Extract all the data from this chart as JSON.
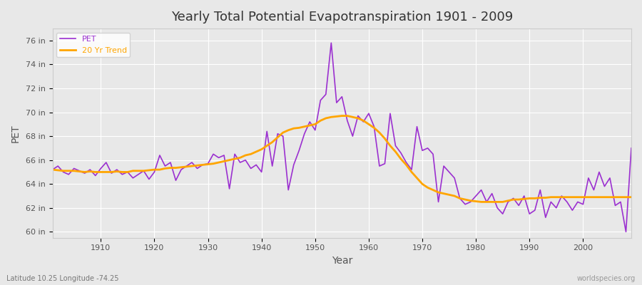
{
  "title": "Yearly Total Potential Evapotranspiration 1901 - 2009",
  "xlabel": "Year",
  "ylabel": "PET",
  "subtitle": "Latitude 10.25 Longitude -74.25",
  "watermark": "worldspecies.org",
  "background_color": "#e8e8e8",
  "plot_background": "#e8e8e8",
  "pet_color": "#9b30d0",
  "trend_color": "#ffa500",
  "ylim_min": 59.5,
  "ylim_max": 77,
  "yticks": [
    60,
    62,
    64,
    66,
    68,
    70,
    72,
    74,
    76
  ],
  "ytick_labels": [
    "60 in",
    "62 in",
    "64 in",
    "66 in",
    "68 in",
    "70 in",
    "72 in",
    "74 in",
    "76 in"
  ],
  "xlim_min": 1901,
  "xlim_max": 2009,
  "xticks": [
    1910,
    1920,
    1930,
    1940,
    1950,
    1960,
    1970,
    1980,
    1990,
    2000
  ],
  "years": [
    1901,
    1902,
    1903,
    1904,
    1905,
    1906,
    1907,
    1908,
    1909,
    1910,
    1911,
    1912,
    1913,
    1914,
    1915,
    1916,
    1917,
    1918,
    1919,
    1920,
    1921,
    1922,
    1923,
    1924,
    1925,
    1926,
    1927,
    1928,
    1929,
    1930,
    1931,
    1932,
    1933,
    1934,
    1935,
    1936,
    1937,
    1938,
    1939,
    1940,
    1941,
    1942,
    1943,
    1944,
    1945,
    1946,
    1947,
    1948,
    1949,
    1950,
    1951,
    1952,
    1953,
    1954,
    1955,
    1956,
    1957,
    1958,
    1959,
    1960,
    1961,
    1962,
    1963,
    1964,
    1965,
    1966,
    1967,
    1968,
    1969,
    1970,
    1971,
    1972,
    1973,
    1974,
    1975,
    1976,
    1977,
    1978,
    1979,
    1980,
    1981,
    1982,
    1983,
    1984,
    1985,
    1986,
    1987,
    1988,
    1989,
    1990,
    1991,
    1992,
    1993,
    1994,
    1995,
    1996,
    1997,
    1998,
    1999,
    2000,
    2001,
    2002,
    2003,
    2004,
    2005,
    2006,
    2007,
    2008,
    2009
  ],
  "pet_values": [
    65.2,
    65.5,
    65.0,
    64.8,
    65.3,
    65.1,
    64.9,
    65.2,
    64.7,
    65.3,
    65.8,
    64.9,
    65.2,
    64.8,
    65.0,
    64.5,
    64.8,
    65.1,
    64.4,
    65.0,
    66.4,
    65.5,
    65.8,
    64.3,
    65.2,
    65.5,
    65.8,
    65.3,
    65.6,
    65.7,
    66.5,
    66.2,
    66.4,
    63.6,
    66.5,
    65.8,
    66.0,
    65.3,
    65.6,
    65.0,
    68.4,
    65.5,
    68.2,
    68.0,
    63.5,
    65.6,
    66.8,
    68.2,
    69.2,
    68.5,
    71.0,
    71.5,
    75.8,
    70.8,
    71.3,
    69.3,
    68.0,
    69.7,
    69.2,
    69.9,
    68.8,
    65.5,
    65.7,
    69.9,
    67.2,
    66.6,
    65.8,
    65.2,
    68.8,
    66.8,
    67.0,
    66.5,
    62.5,
    65.5,
    65.0,
    64.5,
    62.8,
    62.3,
    62.5,
    63.0,
    63.5,
    62.5,
    63.2,
    62.0,
    61.5,
    62.5,
    62.8,
    62.2,
    63.0,
    61.5,
    61.8,
    63.5,
    61.2,
    62.5,
    62.0,
    63.0,
    62.5,
    61.8,
    62.5,
    62.3,
    64.5,
    63.5,
    65.0,
    63.8,
    64.5,
    62.2,
    62.5,
    60.0,
    67.0
  ],
  "trend_values": [
    65.2,
    65.15,
    65.1,
    65.1,
    65.1,
    65.05,
    65.0,
    65.05,
    65.0,
    65.0,
    65.0,
    65.0,
    65.05,
    65.0,
    65.0,
    65.1,
    65.1,
    65.1,
    65.15,
    65.2,
    65.2,
    65.3,
    65.35,
    65.35,
    65.4,
    65.45,
    65.5,
    65.55,
    65.6,
    65.65,
    65.7,
    65.8,
    65.9,
    66.0,
    66.1,
    66.2,
    66.4,
    66.5,
    66.7,
    66.9,
    67.2,
    67.5,
    67.9,
    68.3,
    68.5,
    68.65,
    68.7,
    68.8,
    68.9,
    69.0,
    69.3,
    69.5,
    69.6,
    69.65,
    69.7,
    69.7,
    69.6,
    69.5,
    69.3,
    69.0,
    68.7,
    68.3,
    67.8,
    67.2,
    66.7,
    66.1,
    65.6,
    65.0,
    64.5,
    64.0,
    63.7,
    63.5,
    63.3,
    63.2,
    63.1,
    63.0,
    62.8,
    62.7,
    62.6,
    62.55,
    62.5,
    62.5,
    62.5,
    62.5,
    62.5,
    62.6,
    62.7,
    62.7,
    62.75,
    62.8,
    62.8,
    62.85,
    62.85,
    62.9,
    62.9,
    62.9,
    62.9,
    62.9,
    62.9,
    62.9,
    62.9,
    62.9,
    62.9,
    62.9,
    62.9,
    62.9,
    62.9,
    62.9,
    62.9
  ]
}
